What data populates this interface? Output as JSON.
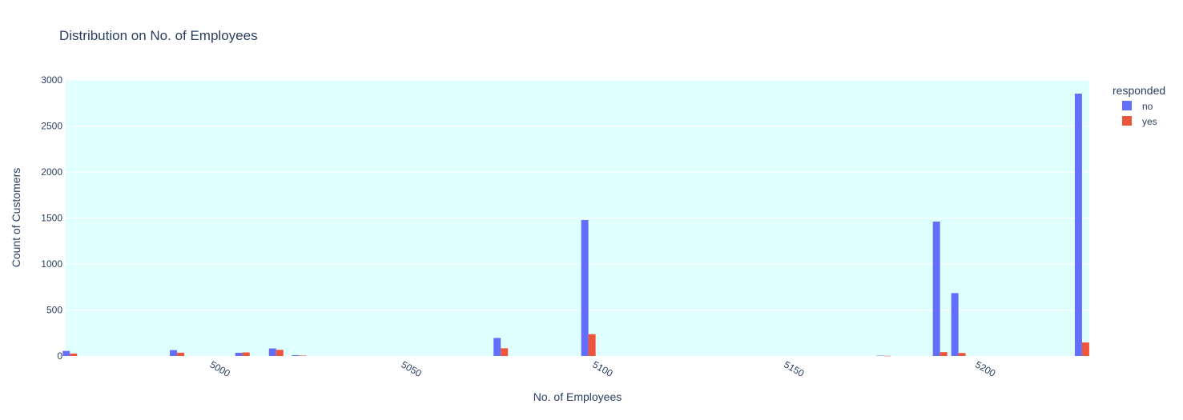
{
  "chart_data": {
    "type": "bar",
    "title": "Distribution on No. of Employees",
    "xlabel": "No. of Employees",
    "ylabel": "Count of Customers",
    "xlim": [
      4962.5,
      5230
    ],
    "ylim": [
      0,
      3000
    ],
    "xticks": [
      5000,
      5050,
      5100,
      5150,
      5200
    ],
    "yticks": [
      0,
      500,
      1000,
      1500,
      2000,
      2500,
      3000
    ],
    "grid": true,
    "plot_background": "#e0ffff",
    "legend": {
      "title": "responded",
      "position": "top-right"
    },
    "x": [
      4963.6,
      4991.6,
      5008.7,
      5017.5,
      5023.5,
      5076.2,
      5099.1,
      5176.3,
      5191.0,
      5195.8,
      5228.1
    ],
    "series": [
      {
        "name": "no",
        "color": "#636efa",
        "values": [
          55,
          64,
          35,
          82,
          9,
          196,
          1478,
          4,
          1461,
          684,
          2852
        ]
      },
      {
        "name": "yes",
        "color": "#ef553b",
        "values": [
          26,
          36,
          39,
          67,
          5,
          84,
          237,
          2,
          42,
          33,
          147
        ]
      }
    ]
  }
}
